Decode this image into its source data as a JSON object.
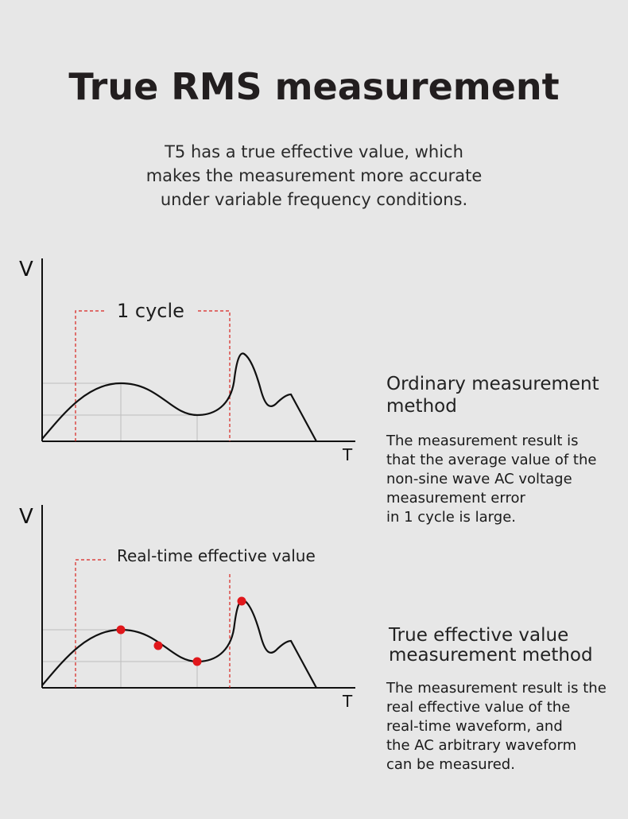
{
  "title": "True RMS measurement",
  "subtitle": {
    "line1": "T5 has a true effective value, which",
    "line2": "makes the measurement more accurate",
    "line3": "under variable frequency conditions."
  },
  "chart1": {
    "y_axis_label": "V",
    "x_axis_label": "T",
    "annotation": "1 cycle",
    "heading": [
      "Ordinary measurement",
      "method"
    ],
    "body": [
      "The measurement result is",
      "that the average value of the",
      "non-sine wave AC voltage",
      "measurement error",
      "in 1 cycle is large."
    ]
  },
  "chart2": {
    "y_axis_label": "V",
    "x_axis_label": "T",
    "annotation": "Real-time effective value",
    "heading": [
      "True effective value",
      "measurement method"
    ],
    "body": [
      "The measurement result is the",
      "real effective value of the",
      "real-time waveform, and",
      "the AC arbitrary waveform",
      "can be measured."
    ]
  },
  "colors": {
    "background": "#e7e7e7",
    "curve": "#111111",
    "dashed_marker": "#d8231f",
    "sample_point": "#e0171b",
    "grid": "#bdbdbd"
  }
}
